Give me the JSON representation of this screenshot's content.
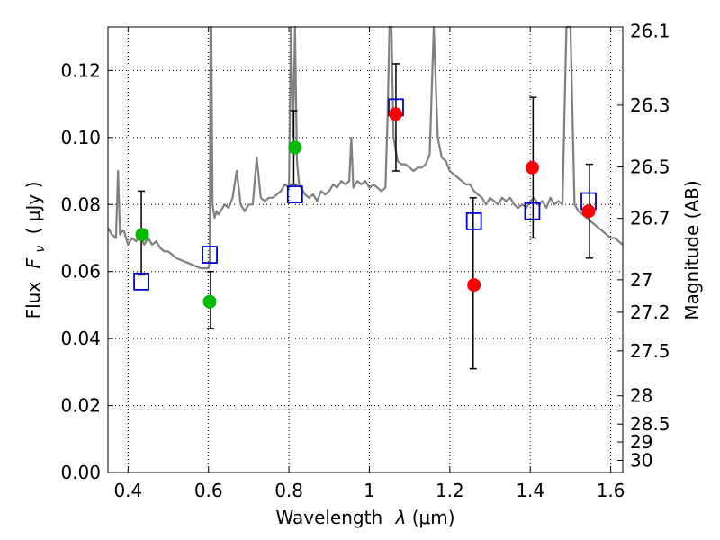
{
  "chart_data": {
    "type": "scatter",
    "xlabel_prefix": "Wavelength",
    "xlabel_symbol": "λ",
    "xlabel_unit": "(μm)",
    "ylabel_prefix": "Flux",
    "ylabel_symbol": "F",
    "ylabel_subscript": "ν",
    "ylabel_unit": "( μJy )",
    "y2label": "Magnitude (AB)",
    "xlim": [
      0.35,
      1.63
    ],
    "ylim": [
      0.0,
      0.133
    ],
    "x_ticks": [
      {
        "value": 0.4,
        "label": "0.4"
      },
      {
        "value": 0.6,
        "label": "0.6"
      },
      {
        "value": 0.8,
        "label": "0.8"
      },
      {
        "value": 1.0,
        "label": "1"
      },
      {
        "value": 1.2,
        "label": "1.2"
      },
      {
        "value": 1.4,
        "label": "1.4"
      },
      {
        "value": 1.6,
        "label": "1.6"
      }
    ],
    "y_ticks": [
      {
        "value": 0.0,
        "label": "0.00"
      },
      {
        "value": 0.02,
        "label": "0.02"
      },
      {
        "value": 0.04,
        "label": "0.04"
      },
      {
        "value": 0.06,
        "label": "0.06"
      },
      {
        "value": 0.08,
        "label": "0.08"
      },
      {
        "value": 0.1,
        "label": "0.10"
      },
      {
        "value": 0.12,
        "label": "0.12"
      }
    ],
    "y2_ticks": [
      {
        "mag": 26.1,
        "label": "26.1"
      },
      {
        "mag": 26.3,
        "label": "26.3"
      },
      {
        "mag": 26.5,
        "label": "26.5"
      },
      {
        "mag": 26.7,
        "label": "26.7"
      },
      {
        "mag": 27.0,
        "label": "27"
      },
      {
        "mag": 27.2,
        "label": "27.2"
      },
      {
        "mag": 27.5,
        "label": "27.5"
      },
      {
        "mag": 28.0,
        "label": "28"
      },
      {
        "mag": 28.5,
        "label": "28.5"
      },
      {
        "mag": 29.0,
        "label": "29"
      },
      {
        "mag": 30.0,
        "label": "30"
      }
    ],
    "grid": true,
    "colors": {
      "spectrum": "#808080",
      "green": "#00bb00",
      "red": "#ff0000",
      "model_box": "#0000cc",
      "errorbar": "#000000"
    },
    "spectrum": {
      "x": [
        0.35,
        0.36,
        0.37,
        0.375,
        0.38,
        0.385,
        0.39,
        0.4,
        0.41,
        0.42,
        0.43,
        0.44,
        0.45,
        0.46,
        0.47,
        0.48,
        0.49,
        0.5,
        0.52,
        0.54,
        0.56,
        0.58,
        0.59,
        0.6,
        0.603,
        0.605,
        0.607,
        0.61,
        0.615,
        0.62,
        0.625,
        0.63,
        0.64,
        0.65,
        0.66,
        0.67,
        0.68,
        0.69,
        0.7,
        0.71,
        0.72,
        0.73,
        0.74,
        0.75,
        0.76,
        0.77,
        0.78,
        0.79,
        0.8,
        0.805,
        0.81,
        0.815,
        0.82,
        0.825,
        0.83,
        0.84,
        0.85,
        0.86,
        0.87,
        0.88,
        0.89,
        0.9,
        0.91,
        0.92,
        0.93,
        0.94,
        0.95,
        0.955,
        0.96,
        0.965,
        0.97,
        0.98,
        0.99,
        1.0,
        1.01,
        1.02,
        1.03,
        1.04,
        1.045,
        1.05,
        1.055,
        1.06,
        1.07,
        1.08,
        1.09,
        1.1,
        1.11,
        1.12,
        1.13,
        1.14,
        1.15,
        1.16,
        1.17,
        1.18,
        1.19,
        1.2,
        1.21,
        1.22,
        1.23,
        1.24,
        1.25,
        1.26,
        1.27,
        1.28,
        1.29,
        1.3,
        1.31,
        1.32,
        1.33,
        1.34,
        1.35,
        1.36,
        1.37,
        1.38,
        1.39,
        1.4,
        1.41,
        1.42,
        1.43,
        1.44,
        1.45,
        1.46,
        1.47,
        1.48,
        1.49,
        1.5,
        1.51,
        1.52,
        1.53,
        1.54,
        1.55,
        1.56,
        1.57,
        1.58,
        1.59,
        1.6,
        1.61,
        1.62,
        1.63
      ],
      "y": [
        0.073,
        0.071,
        0.07,
        0.09,
        0.071,
        0.072,
        0.072,
        0.068,
        0.07,
        0.069,
        0.071,
        0.068,
        0.07,
        0.068,
        0.069,
        0.067,
        0.066,
        0.066,
        0.064,
        0.063,
        0.062,
        0.061,
        0.061,
        0.061,
        0.063,
        0.133,
        0.133,
        0.08,
        0.076,
        0.078,
        0.077,
        0.078,
        0.08,
        0.079,
        0.082,
        0.09,
        0.08,
        0.078,
        0.08,
        0.08,
        0.094,
        0.082,
        0.081,
        0.082,
        0.082,
        0.083,
        0.084,
        0.086,
        0.085,
        0.133,
        0.1,
        0.133,
        0.093,
        0.086,
        0.085,
        0.083,
        0.082,
        0.083,
        0.081,
        0.084,
        0.083,
        0.084,
        0.086,
        0.085,
        0.087,
        0.086,
        0.087,
        0.1,
        0.085,
        0.086,
        0.087,
        0.086,
        0.087,
        0.085,
        0.086,
        0.085,
        0.084,
        0.085,
        0.105,
        0.133,
        0.133,
        0.1,
        0.093,
        0.092,
        0.092,
        0.091,
        0.09,
        0.091,
        0.091,
        0.092,
        0.095,
        0.133,
        0.1,
        0.094,
        0.093,
        0.09,
        0.089,
        0.088,
        0.087,
        0.086,
        0.086,
        0.084,
        0.083,
        0.082,
        0.08,
        0.082,
        0.081,
        0.08,
        0.082,
        0.081,
        0.082,
        0.08,
        0.079,
        0.08,
        0.079,
        0.081,
        0.082,
        0.08,
        0.081,
        0.079,
        0.082,
        0.08,
        0.081,
        0.08,
        0.133,
        0.133,
        0.08,
        0.078,
        0.077,
        0.076,
        0.075,
        0.074,
        0.073,
        0.072,
        0.071,
        0.07,
        0.07,
        0.069,
        0.068
      ]
    },
    "green_points": {
      "x": [
        0.435,
        0.603,
        0.815
      ],
      "y": [
        0.071,
        0.051,
        0.097
      ]
    },
    "red_points": {
      "x": [
        1.065,
        1.26,
        1.405,
        1.545
      ],
      "y": [
        0.107,
        0.056,
        0.091,
        0.078
      ]
    },
    "errorbars": [
      {
        "x": 0.433,
        "y_low": 0.059,
        "y_high": 0.084
      },
      {
        "x": 0.605,
        "y_low": 0.043,
        "y_high": 0.06
      },
      {
        "x": 0.812,
        "y_low": 0.086,
        "y_high": 0.108
      },
      {
        "x": 1.066,
        "y_low": 0.09,
        "y_high": 0.122
      },
      {
        "x": 1.258,
        "y_low": 0.031,
        "y_high": 0.082
      },
      {
        "x": 1.407,
        "y_low": 0.07,
        "y_high": 0.112
      },
      {
        "x": 1.547,
        "y_low": 0.064,
        "y_high": 0.092
      }
    ],
    "model_boxes": {
      "x": [
        0.433,
        0.603,
        0.815,
        1.066,
        1.26,
        1.405,
        1.545
      ],
      "y": [
        0.057,
        0.065,
        0.083,
        0.109,
        0.075,
        0.078,
        0.081
      ]
    }
  }
}
